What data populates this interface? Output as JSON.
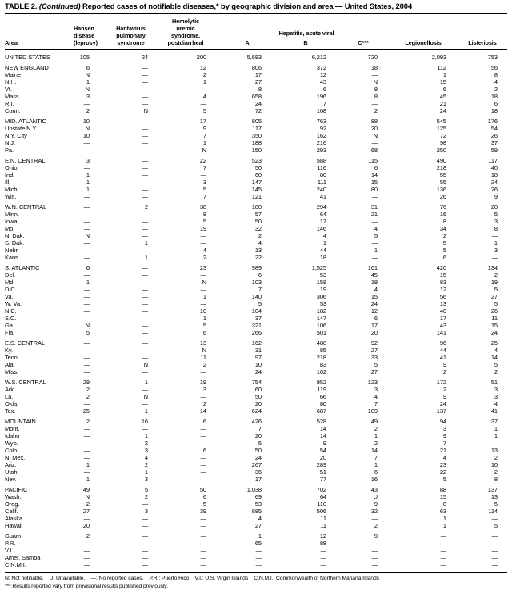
{
  "title": {
    "part1": "TABLE 2. ",
    "part2": "(Continued)",
    "part3": " Reported cases of notifiable diseases,* by geographic division and area — United States, 2004"
  },
  "header": {
    "area": "Area",
    "hansen": "Hansen\ndisease\n(leprosy)",
    "hantavirus": "Hantavirus\npulmonary\nsyndrome",
    "hus": "Hemolytic\nuremic\nsyndrome,\npostdiarrheal",
    "hepatitis_group": "Hepatitis, acute viral",
    "hep_a": "A",
    "hep_b": "B",
    "hep_c": "C***",
    "legionellosis": "Legionellosis",
    "listeriosis": "Listeriosis"
  },
  "table": {
    "columns": [
      "Area",
      "Hansen disease (leprosy)",
      "Hantavirus pulmonary syndrome",
      "Hemolytic uremic syndrome, postdiarrheal",
      "Hepatitis, acute viral A",
      "Hepatitis, acute viral B",
      "Hepatitis, acute viral C***",
      "Legionellosis",
      "Listeriosis"
    ],
    "groups": [
      [
        [
          "UNITED STATES",
          "105",
          "24",
          "200",
          "5,683",
          "6,212",
          "720",
          "2,093",
          "753"
        ]
      ],
      [
        [
          "NEW ENGLAND",
          "6",
          "—",
          "12",
          "806",
          "372",
          "18",
          "112",
          "56"
        ],
        [
          "Maine",
          "N",
          "—",
          "2",
          "17",
          "12",
          "—",
          "1",
          "8"
        ],
        [
          "N.H.",
          "1",
          "—",
          "1",
          "27",
          "43",
          "N",
          "15",
          "4"
        ],
        [
          "Vt.",
          "N",
          "—",
          "—",
          "8",
          "6",
          "8",
          "6",
          "2"
        ],
        [
          "Mass.",
          "3",
          "—",
          "4",
          "658",
          "196",
          "8",
          "45",
          "18"
        ],
        [
          "R.I.",
          "—",
          "—",
          "—",
          "24",
          "7",
          "—",
          "21",
          "6"
        ],
        [
          "Conn.",
          "2",
          "N",
          "5",
          "72",
          "108",
          "2",
          "24",
          "18"
        ]
      ],
      [
        [
          "MID. ATLANTIC",
          "10",
          "—",
          "17",
          "805",
          "763",
          "88",
          "545",
          "176"
        ],
        [
          "Upstate N.Y.",
          "N",
          "—",
          "9",
          "117",
          "92",
          "20",
          "125",
          "54"
        ],
        [
          "N.Y. City",
          "10",
          "—",
          "7",
          "350",
          "162",
          "N",
          "72",
          "26"
        ],
        [
          "N.J.",
          "—",
          "—",
          "1",
          "188",
          "216",
          "—",
          "98",
          "37"
        ],
        [
          "Pa.",
          "—",
          "—",
          "N",
          "150",
          "293",
          "68",
          "250",
          "59"
        ]
      ],
      [
        [
          "E.N. CENTRAL",
          "3",
          "—",
          "22",
          "523",
          "588",
          "115",
          "490",
          "117"
        ],
        [
          "Ohio",
          "—",
          "—",
          "7",
          "50",
          "116",
          "6",
          "218",
          "40"
        ],
        [
          "Ind.",
          "1",
          "—",
          "—",
          "60",
          "80",
          "14",
          "55",
          "18"
        ],
        [
          "Ill.",
          "1",
          "—",
          "3",
          "147",
          "111",
          "15",
          "55",
          "24"
        ],
        [
          "Mich.",
          "1",
          "—",
          "5",
          "145",
          "240",
          "80",
          "136",
          "26"
        ],
        [
          "Wis.",
          "—",
          "—",
          "7",
          "121",
          "41",
          "—",
          "26",
          "9"
        ]
      ],
      [
        [
          "W.N. CENTRAL",
          "—",
          "2",
          "38",
          "180",
          "294",
          "31",
          "76",
          "20"
        ],
        [
          "Minn.",
          "—",
          "—",
          "8",
          "57",
          "64",
          "21",
          "16",
          "5"
        ],
        [
          "Iowa",
          "—",
          "—",
          "5",
          "50",
          "17",
          "—",
          "8",
          "3"
        ],
        [
          "Mo.",
          "—",
          "—",
          "19",
          "32",
          "146",
          "4",
          "34",
          "8"
        ],
        [
          "N. Dak.",
          "N",
          "—",
          "—",
          "2",
          "4",
          "5",
          "2",
          "—"
        ],
        [
          "S. Dak.",
          "—",
          "1",
          "—",
          "4",
          "1",
          "—",
          "5",
          "1"
        ],
        [
          "Nebr.",
          "—",
          "—",
          "4",
          "13",
          "44",
          "1",
          "5",
          "3"
        ],
        [
          "Kans.",
          "—",
          "1",
          "2",
          "22",
          "18",
          "—",
          "6",
          "—"
        ]
      ],
      [
        [
          "S. ATLANTIC",
          "6",
          "—",
          "23",
          "989",
          "1,525",
          "161",
          "420",
          "134"
        ],
        [
          "Del.",
          "—",
          "—",
          "—",
          "6",
          "53",
          "45",
          "15",
          "2"
        ],
        [
          "Md.",
          "1",
          "—",
          "N",
          "103",
          "158",
          "18",
          "83",
          "19"
        ],
        [
          "D.C.",
          "—",
          "—",
          "—",
          "7",
          "19",
          "4",
          "12",
          "5"
        ],
        [
          "Va.",
          "—",
          "—",
          "1",
          "140",
          "306",
          "15",
          "56",
          "27"
        ],
        [
          "W. Va.",
          "—",
          "—",
          "—",
          "5",
          "53",
          "24",
          "13",
          "5"
        ],
        [
          "N.C.",
          "—",
          "—",
          "10",
          "104",
          "182",
          "12",
          "40",
          "26"
        ],
        [
          "S.C.",
          "—",
          "—",
          "1",
          "37",
          "147",
          "6",
          "17",
          "11"
        ],
        [
          "Ga.",
          "N",
          "—",
          "5",
          "321",
          "106",
          "17",
          "43",
          "15"
        ],
        [
          "Fla.",
          "5",
          "—",
          "6",
          "266",
          "501",
          "20",
          "141",
          "24"
        ]
      ],
      [
        [
          "E.S. CENTRAL",
          "—",
          "—",
          "13",
          "162",
          "488",
          "92",
          "96",
          "25"
        ],
        [
          "Ky.",
          "—",
          "—",
          "N",
          "31",
          "85",
          "27",
          "44",
          "4"
        ],
        [
          "Tenn.",
          "—",
          "—",
          "11",
          "97",
          "218",
          "33",
          "41",
          "14"
        ],
        [
          "Ala.",
          "—",
          "N",
          "2",
          "10",
          "83",
          "5",
          "9",
          "5"
        ],
        [
          "Miss.",
          "—",
          "—",
          "—",
          "24",
          "102",
          "27",
          "2",
          "2"
        ]
      ],
      [
        [
          "W.S. CENTRAL",
          "29",
          "1",
          "19",
          "754",
          "952",
          "123",
          "172",
          "51"
        ],
        [
          "Ark.",
          "2",
          "—",
          "3",
          "60",
          "119",
          "3",
          "2",
          "3"
        ],
        [
          "La.",
          "2",
          "N",
          "—",
          "50",
          "66",
          "4",
          "9",
          "3"
        ],
        [
          "Okla.",
          "—",
          "—",
          "2",
          "20",
          "80",
          "7",
          "24",
          "4"
        ],
        [
          "Tex.",
          "25",
          "1",
          "14",
          "624",
          "687",
          "109",
          "137",
          "41"
        ]
      ],
      [
        [
          "MOUNTAIN",
          "2",
          "16",
          "6",
          "426",
          "528",
          "49",
          "94",
          "37"
        ],
        [
          "Mont.",
          "—",
          "—",
          "—",
          "7",
          "14",
          "2",
          "3",
          "1"
        ],
        [
          "Idaho",
          "—",
          "1",
          "—",
          "20",
          "14",
          "1",
          "9",
          "1"
        ],
        [
          "Wyo.",
          "—",
          "2",
          "—",
          "5",
          "9",
          "2",
          "7",
          "—"
        ],
        [
          "Colo.",
          "—",
          "3",
          "6",
          "50",
          "54",
          "14",
          "21",
          "13"
        ],
        [
          "N. Mex.",
          "—",
          "4",
          "—",
          "24",
          "20",
          "7",
          "4",
          "2"
        ],
        [
          "Ariz.",
          "1",
          "2",
          "—",
          "267",
          "289",
          "1",
          "23",
          "10"
        ],
        [
          "Utah",
          "—",
          "1",
          "—",
          "36",
          "51",
          "6",
          "22",
          "2"
        ],
        [
          "Nev.",
          "1",
          "3",
          "—",
          "17",
          "77",
          "16",
          "5",
          "8"
        ]
      ],
      [
        [
          "PACIFIC",
          "49",
          "5",
          "50",
          "1,038",
          "702",
          "43",
          "88",
          "137"
        ],
        [
          "Wash.",
          "N",
          "2",
          "6",
          "69",
          "64",
          "U",
          "15",
          "13"
        ],
        [
          "Oreg.",
          "2",
          "—",
          "5",
          "53",
          "110",
          "9",
          "8",
          "5"
        ],
        [
          "Calif.",
          "27",
          "3",
          "39",
          "885",
          "506",
          "32",
          "63",
          "114"
        ],
        [
          "Alaska",
          "—",
          "—",
          "—",
          "4",
          "11",
          "—",
          "1",
          "—"
        ],
        [
          "Hawaii",
          "20",
          "—",
          "—",
          "27",
          "11",
          "2",
          "1",
          "5"
        ]
      ],
      [
        [
          "Guam",
          "2",
          "—",
          "—",
          "1",
          "12",
          "9",
          "—",
          "—"
        ],
        [
          "P.R.",
          "—",
          "—",
          "—",
          "65",
          "88",
          "—",
          "—",
          "—"
        ],
        [
          "V.I.",
          "—",
          "—",
          "—",
          "—",
          "—",
          "—",
          "—",
          "—"
        ],
        [
          "Amer. Samoa",
          "—",
          "—",
          "—",
          "—",
          "—",
          "—",
          "—",
          "—"
        ],
        [
          "C.N.M.I.",
          "—",
          "—",
          "—",
          "—",
          "—",
          "—",
          "—",
          "—"
        ]
      ]
    ]
  },
  "footnotes": {
    "line1": "N: Not notifiable.    U: Unavailable.    —: No reported cases.    P.R.: Puerto Rico    V.I.: U.S. Virgin Islands    C.N.M.I.: Commonwealth of Northern Mariana Islands",
    "line2_marker": "***",
    "line2_text": " Results reported vary from provisional results published previously."
  }
}
